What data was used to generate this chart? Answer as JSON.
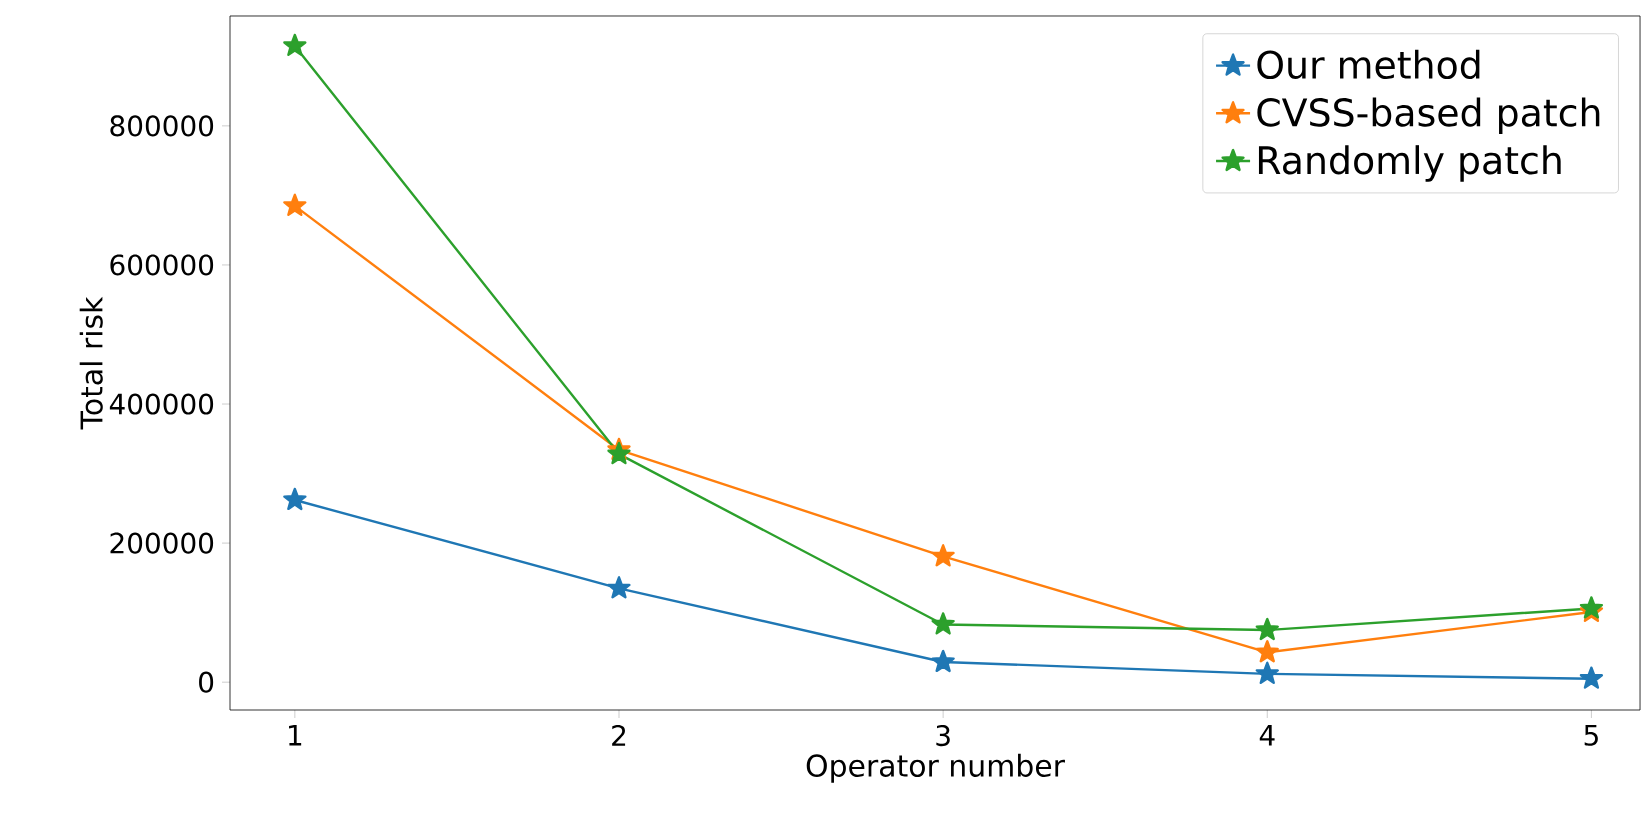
{
  "chart_data": {
    "type": "line",
    "xlabel": "Operator number",
    "ylabel": "Total risk",
    "x": [
      1,
      2,
      3,
      4,
      5
    ],
    "series": [
      {
        "name": "Our method",
        "color": "#1f77b4",
        "values": [
          262000,
          135000,
          29000,
          12000,
          5000
        ]
      },
      {
        "name": "CVSS-based patch",
        "color": "#ff7f0e",
        "values": [
          685000,
          334000,
          181000,
          43000,
          101000
        ]
      },
      {
        "name": "Randomly patch",
        "color": "#2ca02c",
        "values": [
          915000,
          328000,
          83000,
          75000,
          106000
        ]
      }
    ],
    "xlim": [
      0.8,
      5.15
    ],
    "ylim": [
      -40000,
      958000
    ],
    "xticks": [
      1,
      2,
      3,
      4,
      5
    ],
    "yticks": [
      0,
      200000,
      400000,
      600000,
      800000
    ],
    "marker": "star",
    "line_style": "solid",
    "grid": false,
    "legend": "top right"
  }
}
